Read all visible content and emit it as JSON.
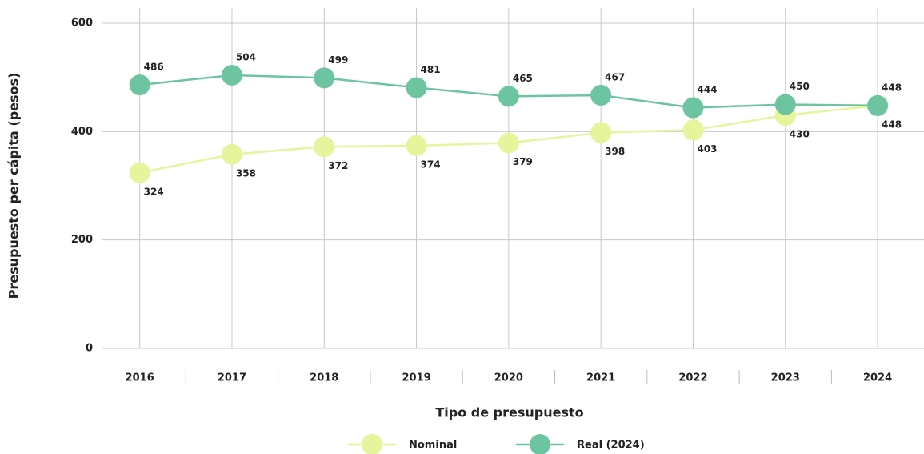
{
  "chart_data": {
    "type": "line",
    "x_label": "Tipo de presupuesto",
    "y_label": "Presupuesto per cápita (pesos)",
    "categories": [
      "2016",
      "2017",
      "2018",
      "2019",
      "2020",
      "2021",
      "2022",
      "2023",
      "2024"
    ],
    "series": [
      {
        "name": "Nominal",
        "color": "#e6f59c",
        "values": [
          324,
          358,
          372,
          374,
          379,
          398,
          403,
          430,
          448
        ]
      },
      {
        "name": "Real (2024)",
        "color": "#6cc5a0",
        "values": [
          486,
          504,
          499,
          481,
          465,
          467,
          444,
          450,
          448
        ]
      }
    ],
    "ylim": [
      0,
      600
    ],
    "yticks": [
      0,
      200,
      400,
      600
    ],
    "grid": true,
    "legend": "bottom"
  }
}
